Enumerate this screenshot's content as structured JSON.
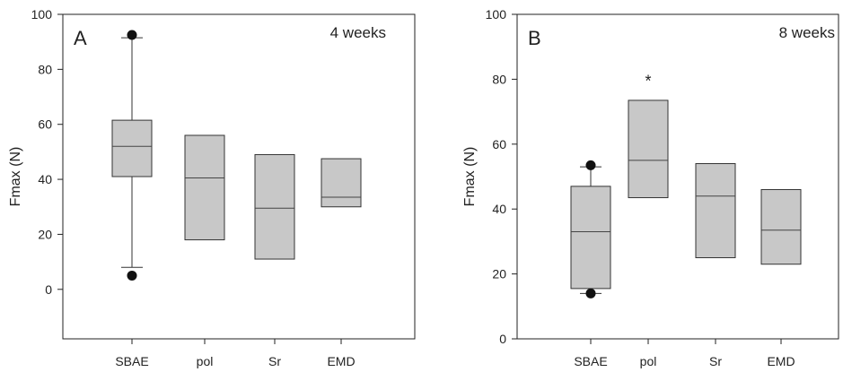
{
  "colors": {
    "box_fill": "#c8c8c8",
    "stroke": "#333333",
    "outlier": "#111111"
  },
  "chart_data": [
    {
      "type": "box",
      "panel_letter": "A",
      "title": "4 weeks",
      "xlabel": "",
      "ylabel": "Fmax (N)",
      "ylim": [
        -18,
        100
      ],
      "yticks": [
        0,
        20,
        40,
        60,
        80,
        100
      ],
      "grid": false,
      "categories": [
        "SBAE",
        "pol",
        "Sr",
        "EMD"
      ],
      "boxes": [
        {
          "category": "SBAE",
          "q1": 41,
          "median": 52,
          "q3": 61.5,
          "whisker_low": 8,
          "whisker_high": 91.5,
          "outliers": [
            5,
            92.5
          ]
        },
        {
          "category": "pol",
          "q1": 18,
          "median": 40.5,
          "q3": 56,
          "whisker_low": null,
          "whisker_high": null,
          "outliers": []
        },
        {
          "category": "Sr",
          "q1": 11,
          "median": 29.5,
          "q3": 49,
          "whisker_low": null,
          "whisker_high": null,
          "outliers": []
        },
        {
          "category": "EMD",
          "q1": 30,
          "median": 33.5,
          "q3": 47.5,
          "whisker_low": null,
          "whisker_high": null,
          "outliers": []
        }
      ],
      "annotations": []
    },
    {
      "type": "box",
      "panel_letter": "B",
      "title": "8 weeks",
      "xlabel": "",
      "ylabel": "Fmax (N)",
      "ylim": [
        0,
        100
      ],
      "yticks": [
        0,
        20,
        40,
        60,
        80,
        100
      ],
      "grid": false,
      "categories": [
        "SBAE",
        "pol",
        "Sr",
        "EMD"
      ],
      "boxes": [
        {
          "category": "SBAE",
          "q1": 15.5,
          "median": 33,
          "q3": 47,
          "whisker_low": 14,
          "whisker_high": 53,
          "outliers": [
            14,
            53.5
          ]
        },
        {
          "category": "pol",
          "q1": 43.5,
          "median": 55,
          "q3": 73.5,
          "whisker_low": null,
          "whisker_high": null,
          "outliers": []
        },
        {
          "category": "Sr",
          "q1": 25,
          "median": 44,
          "q3": 54,
          "whisker_low": null,
          "whisker_high": null,
          "outliers": []
        },
        {
          "category": "EMD",
          "q1": 23,
          "median": 33.5,
          "q3": 46,
          "whisker_low": null,
          "whisker_high": null,
          "outliers": []
        }
      ],
      "annotations": [
        {
          "category": "pol",
          "text": "*",
          "y": 80
        }
      ]
    }
  ]
}
